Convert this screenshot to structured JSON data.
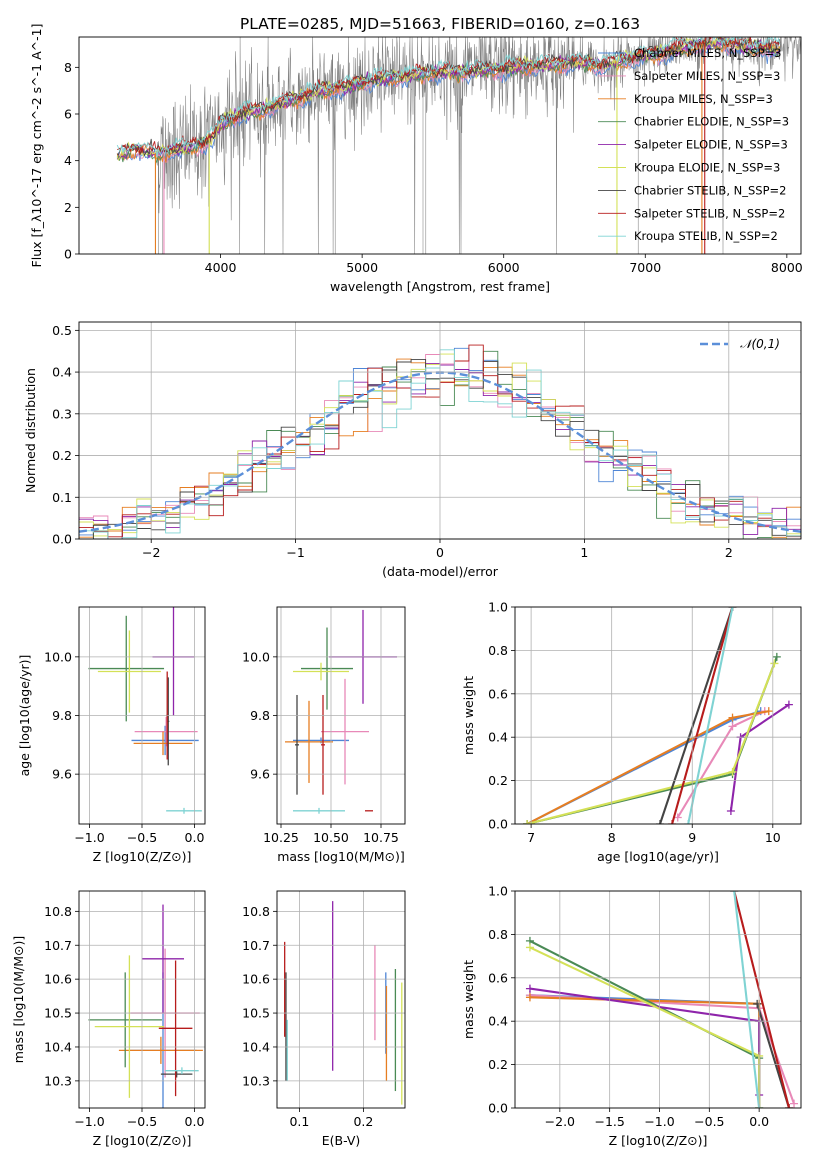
{
  "figure": {
    "title": "PLATE=0285, MJD=51663, FIBERID=0160, z=0.163"
  },
  "colors": {
    "chabrier_miles": "#4e85d6",
    "salpeter_miles": "#e889b8",
    "kroupa_miles": "#e67e22",
    "chabrier_elodie": "#4a8a55",
    "salpeter_elodie": "#8e24aa",
    "kroupa_elodie": "#d4e157",
    "chabrier_stelib": "#444444",
    "salpeter_stelib": "#b71c1c",
    "kroupa_stelib": "#7fd3d3",
    "observed": "#808080",
    "gaussian": "#5b8fd9"
  },
  "chart_data": [
    {
      "panel": "spectrum",
      "type": "line",
      "xlabel": "wavelength [Angstrom, rest frame]",
      "ylabel": "Flux [f_λ10^-17 erg cm^-2 s^-1 A^-1]",
      "xlim": [
        3000,
        8100
      ],
      "ylim": [
        0,
        9.3
      ],
      "xticks": [
        "4000",
        "5000",
        "6000",
        "7000",
        "8000"
      ],
      "yticks": [
        "0",
        "2",
        "4",
        "6",
        "8"
      ],
      "grid": false,
      "legend_position": "right",
      "legend": [
        "Chabrier MILES, N_SSP=3",
        "Salpeter MILES, N_SSP=3",
        "Kroupa MILES, N_SSP=3",
        "Chabrier ELODIE, N_SSP=3",
        "Salpeter ELODIE, N_SSP=3",
        "Kroupa ELODIE, N_SSP=3",
        "Chabrier STELIB, N_SSP=2",
        "Salpeter STELIB, N_SSP=2",
        "Kroupa STELIB, N_SSP=2"
      ],
      "model_continuum": {
        "x": [
          3270,
          3400,
          3550,
          3700,
          3850,
          3950,
          4000,
          4150,
          4300,
          4500,
          4700,
          4900,
          5100,
          5300,
          5500,
          5700,
          5900,
          6100,
          6300,
          6500,
          6700,
          6900,
          7100,
          7300,
          7500,
          7700,
          7900
        ],
        "y": [
          4.2,
          4.5,
          4.3,
          4.5,
          4.7,
          5.0,
          5.6,
          6.0,
          6.2,
          6.6,
          7.0,
          7.2,
          7.5,
          7.6,
          7.8,
          7.8,
          7.9,
          8.0,
          8.1,
          8.2,
          8.1,
          8.4,
          8.6,
          8.9,
          9.1,
          8.9,
          8.8
        ]
      },
      "observed_range": [
        3550,
        8100
      ]
    },
    {
      "panel": "residuals",
      "type": "line",
      "xlabel": "(data-model)/error",
      "ylabel": "Normed distribution",
      "xlim": [
        -2.5,
        2.5
      ],
      "ylim": [
        0,
        0.52
      ],
      "xticks": [
        "−2",
        "−1",
        "0",
        "1",
        "2"
      ],
      "yticks": [
        "0.0",
        "0.1",
        "0.2",
        "0.3",
        "0.4",
        "0.5"
      ],
      "grid": true,
      "legend_position": "top-right",
      "legend": [
        "𝒩(0,1)"
      ],
      "bin_width": 0.1
    },
    {
      "panel": "age_vs_Z",
      "type": "scatter",
      "xlabel": "Z [log10(Z/Z⊙)]",
      "ylabel": "age  [log10(age/yr)]",
      "xlim": [
        -1.1,
        0.1
      ],
      "ylim": [
        9.43,
        10.17
      ],
      "xticks": [
        "−1.0",
        "−0.5",
        "0.0"
      ],
      "yticks": [
        "9.6",
        "9.8",
        "10.0"
      ],
      "grid": true,
      "points": [
        {
          "m": "chabrier_miles",
          "x": -0.28,
          "y": 9.715,
          "xerr": 0.32,
          "yerr": 0.05
        },
        {
          "m": "salpeter_miles",
          "x": -0.27,
          "y": 9.745,
          "xerr": 0.3,
          "yerr": 0.05
        },
        {
          "m": "kroupa_miles",
          "x": -0.3,
          "y": 9.705,
          "xerr": 0.28,
          "yerr": 0.04
        },
        {
          "m": "chabrier_elodie",
          "x": -0.65,
          "y": 9.96,
          "xerr": 0.36,
          "yerr": 0.18
        },
        {
          "m": "salpeter_elodie",
          "x": -0.2,
          "y": 10.0,
          "xerr": 0.2,
          "yerr": 0.2
        },
        {
          "m": "kroupa_elodie",
          "x": -0.62,
          "y": 9.95,
          "xerr": 0.3,
          "yerr": 0.14
        },
        {
          "m": "chabrier_stelib",
          "x": -0.25,
          "y": 9.78,
          "xerr": 0.01,
          "yerr": 0.15
        },
        {
          "m": "salpeter_stelib",
          "x": -0.26,
          "y": 9.8,
          "xerr": 0.01,
          "yerr": 0.15
        },
        {
          "m": "kroupa_stelib",
          "x": -0.1,
          "y": 9.475,
          "xerr": 0.17,
          "yerr": 0.01
        }
      ]
    },
    {
      "panel": "age_vs_mass",
      "type": "scatter",
      "xlabel": "mass [log10(M/M⊙)]",
      "ylabel": "",
      "xlim": [
        10.23,
        10.87
      ],
      "ylim": [
        9.43,
        10.17
      ],
      "xticks": [
        "10.25",
        "10.50",
        "10.75"
      ],
      "yticks": [
        "9.6",
        "9.8",
        "10.0"
      ],
      "grid": true,
      "points": [
        {
          "m": "chabrier_miles",
          "x": 10.45,
          "y": 9.715,
          "xerr": 0.14,
          "yerr": 0.01
        },
        {
          "m": "salpeter_miles",
          "x": 10.57,
          "y": 9.745,
          "xerr": 0.12,
          "yerr": 0.18
        },
        {
          "m": "kroupa_miles",
          "x": 10.39,
          "y": 9.71,
          "xerr": 0.12,
          "yerr": 0.14
        },
        {
          "m": "chabrier_elodie",
          "x": 10.48,
          "y": 9.96,
          "xerr": 0.13,
          "yerr": 0.14
        },
        {
          "m": "salpeter_elodie",
          "x": 10.66,
          "y": 10.0,
          "xerr": 0.17,
          "yerr": 0.16
        },
        {
          "m": "kroupa_elodie",
          "x": 10.45,
          "y": 9.95,
          "xerr": 0.14,
          "yerr": 0.03
        },
        {
          "m": "chabrier_stelib",
          "x": 10.33,
          "y": 9.7,
          "xerr": 0.01,
          "yerr": 0.17
        },
        {
          "m": "salpeter_stelib",
          "x": 10.46,
          "y": 9.7,
          "xerr": 0.01,
          "yerr": 0.17
        },
        {
          "m": "kroupa_stelib",
          "x": 10.44,
          "y": 9.475,
          "xerr": 0.13,
          "yerr": 0.01
        },
        {
          "m": "salpeter_stelib",
          "x": 10.69,
          "y": 9.475,
          "xerr": 0.02,
          "yerr": 0.0
        }
      ]
    },
    {
      "panel": "mass_weight_vs_age",
      "type": "line",
      "xlabel": "age  [log10(age/yr)]",
      "ylabel": "mass weight",
      "xlim": [
        6.8,
        10.35
      ],
      "ylim": [
        0,
        1
      ],
      "xticks": [
        "7",
        "8",
        "9",
        "10"
      ],
      "yticks": [
        "0.0",
        "0.2",
        "0.4",
        "0.6",
        "0.8",
        "1.0"
      ],
      "grid": true,
      "series": [
        {
          "m": "chabrier_miles",
          "x": [
            6.95,
            9.5,
            9.85
          ],
          "y": [
            0.0,
            0.48,
            0.52
          ]
        },
        {
          "m": "salpeter_miles",
          "x": [
            8.82,
            9.5,
            9.9
          ],
          "y": [
            0.03,
            0.45,
            0.52
          ]
        },
        {
          "m": "kroupa_miles",
          "x": [
            6.95,
            9.5,
            9.95
          ],
          "y": [
            0.0,
            0.49,
            0.52
          ]
        },
        {
          "m": "chabrier_elodie",
          "x": [
            6.95,
            9.5,
            10.05
          ],
          "y": [
            0.0,
            0.23,
            0.77
          ]
        },
        {
          "m": "salpeter_elodie",
          "x": [
            9.48,
            9.6,
            10.2
          ],
          "y": [
            0.06,
            0.4,
            0.55
          ]
        },
        {
          "m": "kroupa_elodie",
          "x": [
            6.95,
            9.5,
            10.02
          ],
          "y": [
            0.0,
            0.24,
            0.74
          ]
        },
        {
          "m": "chabrier_stelib",
          "x": [
            8.6,
            9.5
          ],
          "y": [
            0.0,
            1.0
          ]
        },
        {
          "m": "salpeter_stelib",
          "x": [
            8.75,
            9.5
          ],
          "y": [
            0.0,
            1.0
          ]
        },
        {
          "m": "kroupa_stelib",
          "x": [
            8.95,
            9.5
          ],
          "y": [
            0.0,
            1.0
          ]
        }
      ]
    },
    {
      "panel": "mass_vs_Z",
      "type": "scatter",
      "xlabel": "Z [log10(Z/Z⊙)]",
      "ylabel": "mass [log10(M/M⊙)]",
      "xlim": [
        -1.1,
        0.1
      ],
      "ylim": [
        10.22,
        10.86
      ],
      "xticks": [
        "−1.0",
        "−0.5",
        "0.0"
      ],
      "yticks": [
        "10.3",
        "10.4",
        "10.5",
        "10.6",
        "10.7",
        "10.8"
      ],
      "grid": true,
      "points": [
        {
          "m": "chabrier_miles",
          "x": -0.3,
          "y": 10.39,
          "xerr": 0.32,
          "yerr": 0.23
        },
        {
          "m": "salpeter_miles",
          "x": -0.28,
          "y": 10.5,
          "xerr": 0.33,
          "yerr": 0.19
        },
        {
          "m": "kroupa_miles",
          "x": -0.32,
          "y": 10.39,
          "xerr": 0.4,
          "yerr": 0.04
        },
        {
          "m": "chabrier_elodie",
          "x": -0.66,
          "y": 10.48,
          "xerr": 0.35,
          "yerr": 0.14
        },
        {
          "m": "salpeter_elodie",
          "x": -0.3,
          "y": 10.66,
          "xerr": 0.2,
          "yerr": 0.16
        },
        {
          "m": "kroupa_elodie",
          "x": -0.62,
          "y": 10.46,
          "xerr": 0.33,
          "yerr": 0.21
        },
        {
          "m": "chabrier_stelib",
          "x": -0.17,
          "y": 10.32,
          "xerr": 0.15,
          "yerr": 0.01
        },
        {
          "m": "salpeter_stelib",
          "x": -0.18,
          "y": 10.455,
          "xerr": 0.16,
          "yerr": 0.2
        },
        {
          "m": "kroupa_stelib",
          "x": -0.12,
          "y": 10.33,
          "xerr": 0.16,
          "yerr": 0.01
        }
      ]
    },
    {
      "panel": "mass_vs_ebv",
      "type": "scatter",
      "xlabel": "E(B-V)",
      "ylabel": "",
      "xlim": [
        0.065,
        0.265
      ],
      "ylim": [
        10.22,
        10.86
      ],
      "xticks": [
        "0.1",
        "0.2"
      ],
      "yticks": [
        "10.3",
        "10.4",
        "10.5",
        "10.6",
        "10.7",
        "10.8"
      ],
      "grid": true,
      "points": [
        {
          "m": "chabrier_miles",
          "x": 0.235,
          "y": 10.5,
          "xerr": 0.0,
          "yerr": 0.12
        },
        {
          "m": "salpeter_miles",
          "x": 0.218,
          "y": 10.56,
          "xerr": 0.0,
          "yerr": 0.14
        },
        {
          "m": "kroupa_miles",
          "x": 0.236,
          "y": 10.44,
          "xerr": 0.0,
          "yerr": 0.14
        },
        {
          "m": "chabrier_elodie",
          "x": 0.25,
          "y": 10.45,
          "xerr": 0.0,
          "yerr": 0.18
        },
        {
          "m": "salpeter_elodie",
          "x": 0.152,
          "y": 10.58,
          "xerr": 0.0,
          "yerr": 0.25
        },
        {
          "m": "kroupa_elodie",
          "x": 0.26,
          "y": 10.41,
          "xerr": 0.0,
          "yerr": 0.18
        },
        {
          "m": "chabrier_stelib",
          "x": 0.079,
          "y": 10.46,
          "xerr": 0.0,
          "yerr": 0.16
        },
        {
          "m": "salpeter_stelib",
          "x": 0.077,
          "y": 10.57,
          "xerr": 0.0,
          "yerr": 0.14
        },
        {
          "m": "kroupa_stelib",
          "x": 0.081,
          "y": 10.39,
          "xerr": 0.0,
          "yerr": 0.09
        }
      ]
    },
    {
      "panel": "mass_weight_vs_Z",
      "type": "line",
      "xlabel": "Z [log10(Z/Z⊙)]",
      "ylabel": "mass weight",
      "xlim": [
        -2.45,
        0.42
      ],
      "ylim": [
        0,
        1
      ],
      "xticks": [
        "−2.0",
        "−1.5",
        "−1.0",
        "−0.5",
        "0.0"
      ],
      "yticks": [
        "0.0",
        "0.2",
        "0.4",
        "0.6",
        "0.8",
        "1.0"
      ],
      "grid": true,
      "series": [
        {
          "m": "chabrier_miles",
          "x": [
            -2.3,
            0.0,
            0.0
          ],
          "y": [
            0.52,
            0.48,
            0.0
          ]
        },
        {
          "m": "salpeter_miles",
          "x": [
            -2.3,
            0.0,
            0.35
          ],
          "y": [
            0.52,
            0.46,
            0.02
          ]
        },
        {
          "m": "kroupa_miles",
          "x": [
            -2.3,
            0.0,
            0.0
          ],
          "y": [
            0.51,
            0.48,
            0.0
          ]
        },
        {
          "m": "chabrier_elodie",
          "x": [
            -2.3,
            0.0,
            0.0
          ],
          "y": [
            0.77,
            0.23,
            0.0
          ]
        },
        {
          "m": "salpeter_elodie",
          "x": [
            -2.3,
            0.0,
            0.0
          ],
          "y": [
            0.55,
            0.4,
            0.06
          ]
        },
        {
          "m": "kroupa_elodie",
          "x": [
            -2.3,
            0.0,
            0.0
          ],
          "y": [
            0.74,
            0.24,
            0.0
          ]
        },
        {
          "m": "chabrier_stelib",
          "x": [
            -0.02,
            0.3
          ],
          "y": [
            0.48,
            0.0
          ]
        },
        {
          "m": "salpeter_stelib",
          "x": [
            -0.25,
            0.3
          ],
          "y": [
            1.0,
            0.0
          ]
        },
        {
          "m": "kroupa_stelib",
          "x": [
            -0.25,
            0.0
          ],
          "y": [
            1.0,
            0.0
          ]
        }
      ]
    }
  ]
}
